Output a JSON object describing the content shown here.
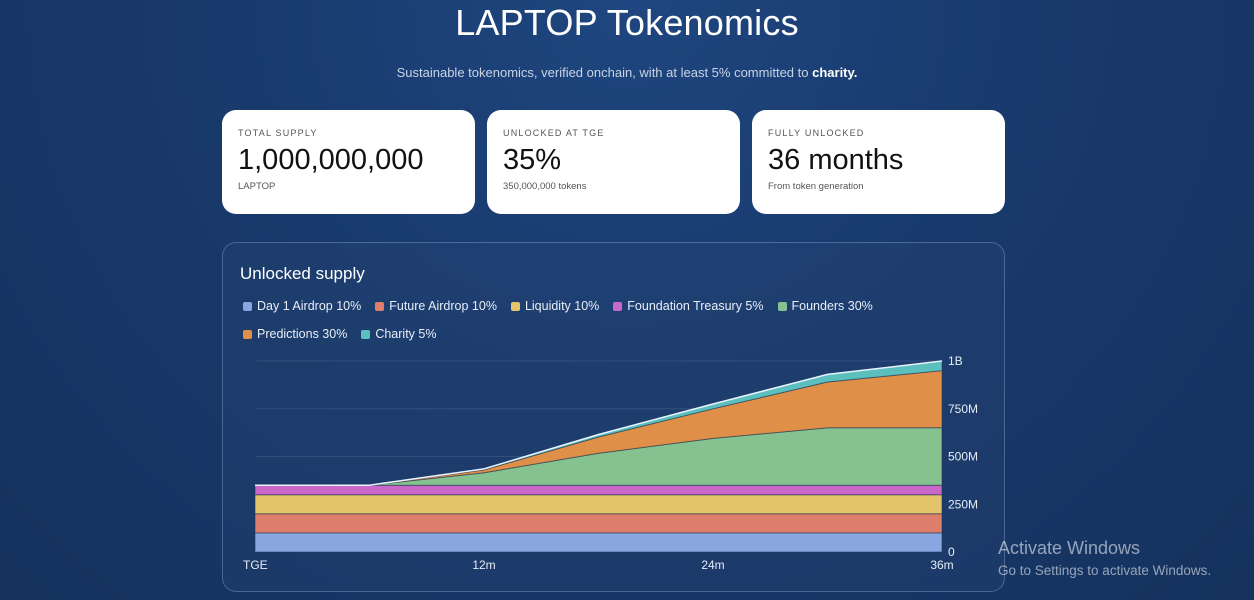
{
  "header": {
    "title": "LAPTOP Tokenomics",
    "subtitle_text": "Sustainable tokenomics, verified onchain, with at least 5% committed to",
    "subtitle_strong": "charity."
  },
  "stats": [
    {
      "label": "TOTAL SUPPLY",
      "value": "1,000,000,000",
      "sub": "LAPTOP"
    },
    {
      "label": "UNLOCKED AT TGE",
      "value": "35%",
      "sub": "350,000,000 tokens"
    },
    {
      "label": "FULLY UNLOCKED",
      "value": "36 months",
      "sub": "From token generation"
    }
  ],
  "chart_panel": {
    "title": "Unlocked supply"
  },
  "chart_data": {
    "type": "area",
    "stacked": true,
    "title": "Unlocked supply",
    "x_ticks": [
      0,
      12,
      24,
      36
    ],
    "x_tick_labels": [
      "TGE",
      "12m",
      "24m",
      "36m"
    ],
    "y_ticks": [
      0,
      250,
      500,
      750,
      1000
    ],
    "y_tick_labels": [
      "0",
      "250M",
      "500M",
      "750M",
      "1B"
    ],
    "ylim": [
      0,
      1000
    ],
    "xlim": [
      0,
      36
    ],
    "units": "million tokens",
    "x": [
      0,
      6,
      12,
      18,
      24,
      30,
      36
    ],
    "legend_position": "top-left",
    "grid": true,
    "series": [
      {
        "name": "Day 1 Airdrop 10%",
        "color": "#8aa6e0",
        "values": [
          100,
          100,
          100,
          100,
          100,
          100,
          100
        ]
      },
      {
        "name": "Future Airdrop 10%",
        "color": "#de7e6c",
        "values": [
          100,
          100,
          100,
          100,
          100,
          100,
          100
        ]
      },
      {
        "name": "Liquidity 10%",
        "color": "#e3c46a",
        "values": [
          100,
          100,
          100,
          100,
          100,
          100,
          100
        ]
      },
      {
        "name": "Foundation Treasury 5%",
        "color": "#c968c8",
        "values": [
          50,
          50,
          50,
          50,
          50,
          50,
          50
        ]
      },
      {
        "name": "Founders 30%",
        "color": "#86c290",
        "values": [
          0,
          0,
          65,
          167,
          245,
          300,
          300
        ]
      },
      {
        "name": "Predictions 30%",
        "color": "#e08f48",
        "values": [
          0,
          0,
          15,
          85,
          155,
          240,
          300
        ]
      },
      {
        "name": "Charity 5%",
        "color": "#5bbfbe",
        "values": [
          0,
          0,
          5,
          13,
          25,
          40,
          50
        ]
      }
    ]
  },
  "watermark": {
    "title": "Activate Windows",
    "subtitle": "Go to Settings to activate Windows."
  }
}
